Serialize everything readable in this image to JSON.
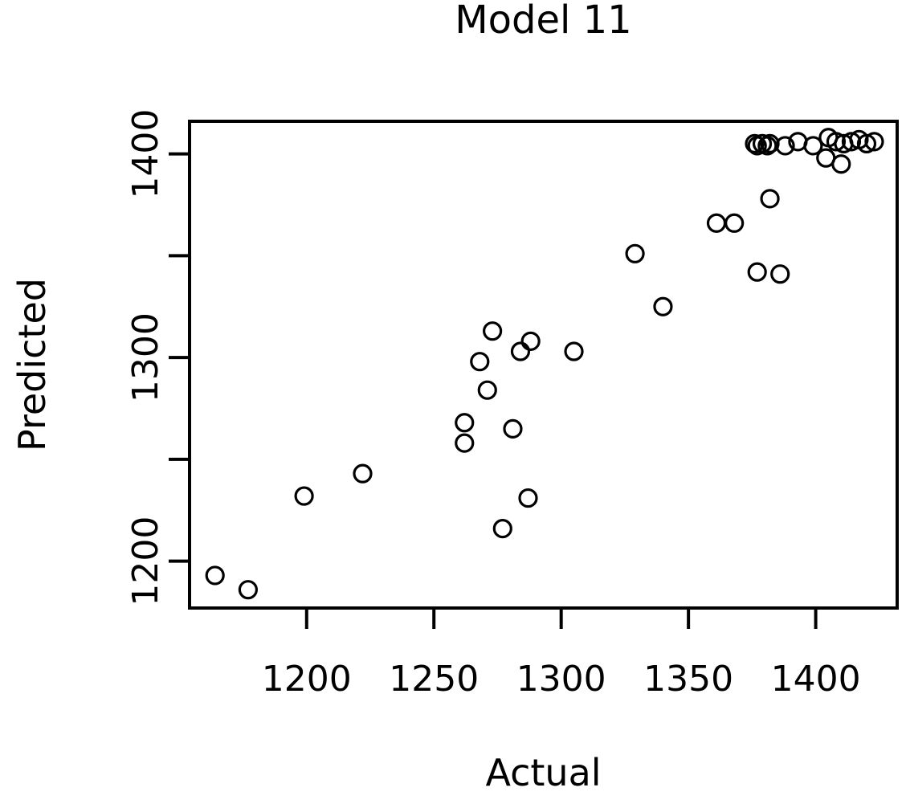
{
  "window": {
    "background": "#ffffff"
  },
  "chart_data": {
    "type": "scatter",
    "title": "Model 11",
    "xlabel": "Actual",
    "ylabel": "Predicted",
    "marker": "open-circle",
    "marker_color": "#000000",
    "grid": false,
    "legend": "none",
    "xlim": [
      1154,
      1432
    ],
    "ylim": [
      1177,
      1416
    ],
    "x_ticks": [
      1200,
      1250,
      1300,
      1350,
      1400
    ],
    "x_tick_labels": [
      "1200",
      "1250",
      "1300",
      "1350",
      "1400"
    ],
    "y_ticks": [
      1200,
      1250,
      1300,
      1350,
      1400
    ],
    "y_tick_labels": [
      "1200",
      "",
      "1300",
      "",
      "1400"
    ],
    "points": [
      [
        1164,
        1193
      ],
      [
        1177,
        1186
      ],
      [
        1199,
        1232
      ],
      [
        1222,
        1243
      ],
      [
        1262,
        1258
      ],
      [
        1262,
        1268
      ],
      [
        1268,
        1298
      ],
      [
        1271,
        1284
      ],
      [
        1273,
        1313
      ],
      [
        1277,
        1216
      ],
      [
        1281,
        1265
      ],
      [
        1284,
        1303
      ],
      [
        1287,
        1231
      ],
      [
        1288,
        1308
      ],
      [
        1305,
        1303
      ],
      [
        1329,
        1351
      ],
      [
        1340,
        1325
      ],
      [
        1361,
        1366
      ],
      [
        1368,
        1366
      ],
      [
        1377,
        1342
      ],
      [
        1382,
        1378
      ],
      [
        1386,
        1341
      ],
      [
        1376,
        1405
      ],
      [
        1377,
        1404
      ],
      [
        1379,
        1405
      ],
      [
        1381,
        1404
      ],
      [
        1382,
        1405
      ],
      [
        1388,
        1404
      ],
      [
        1393,
        1406
      ],
      [
        1399,
        1404
      ],
      [
        1404,
        1398
      ],
      [
        1405,
        1408
      ],
      [
        1408,
        1406
      ],
      [
        1410,
        1395
      ],
      [
        1411,
        1405
      ],
      [
        1414,
        1406
      ],
      [
        1417,
        1407
      ],
      [
        1420,
        1405
      ],
      [
        1423,
        1406
      ]
    ]
  }
}
